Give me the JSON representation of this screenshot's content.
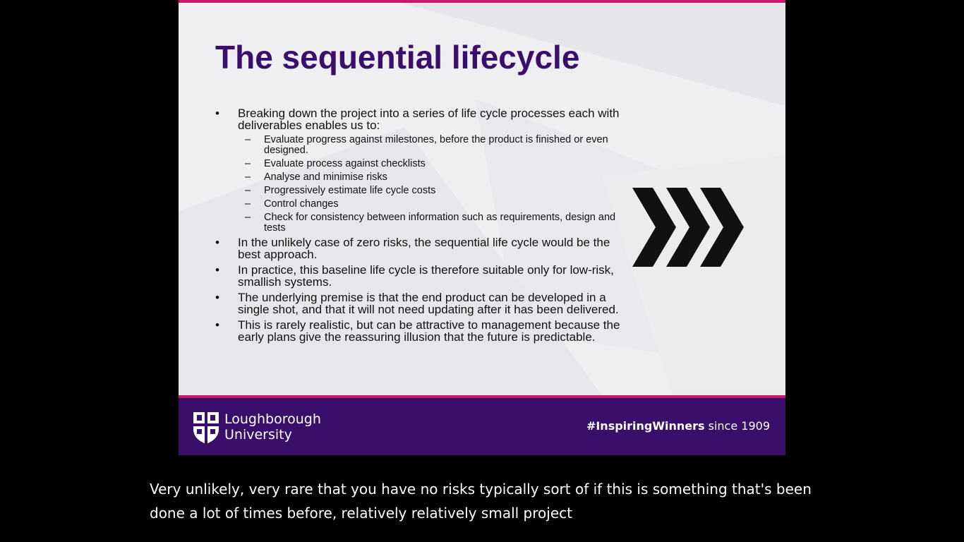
{
  "slide": {
    "title": "The sequential lifecycle",
    "bullets": [
      {
        "marker": "•",
        "text": "Breaking down the project into a series of life cycle processes each with deliverables enables us to:"
      },
      {
        "marker": "•",
        "text": "In the unlikely case of zero risks, the sequential life cycle would be the best approach."
      },
      {
        "marker": "•",
        "text": "In practice, this baseline life cycle is therefore suitable only for low-risk, smallish systems."
      },
      {
        "marker": "•",
        "text": "The underlying premise is that the end product can be developed in a single shot, and that it will not need updating after it has been delivered."
      },
      {
        "marker": "•",
        "text": "This is rarely realistic, but can be attractive to management because the early plans give the reassuring illusion that the future is predictable."
      }
    ],
    "sub_bullets": [
      {
        "marker": "–",
        "text": "Evaluate progress against milestones, before the product is finished or even designed."
      },
      {
        "marker": "–",
        "text": "Evaluate process against checklists"
      },
      {
        "marker": "–",
        "text": "Analyse and minimise risks"
      },
      {
        "marker": "–",
        "text": "Progressively estimate life cycle costs"
      },
      {
        "marker": "–",
        "text": "Control changes"
      },
      {
        "marker": "–",
        "text": "Check for consistency between information such as requirements, design and tests"
      }
    ],
    "decoration_icon": "triple-chevron-right-icon"
  },
  "footer": {
    "logo_icon": "university-crest-icon",
    "university_line1": "Loughborough",
    "university_line2": "University",
    "hashtag": "#InspiringWinners",
    "since": " since 1909"
  },
  "caption": {
    "line1": "Very unlikely, very rare that you have no risks typically sort of if this is something that's been",
    "line2": "done a lot of times before, relatively relatively small project"
  },
  "colors": {
    "brand_purple": "#3a0f6b",
    "accent_magenta": "#c8196a",
    "slide_background": "#efeef1",
    "page_background": "#000000"
  }
}
